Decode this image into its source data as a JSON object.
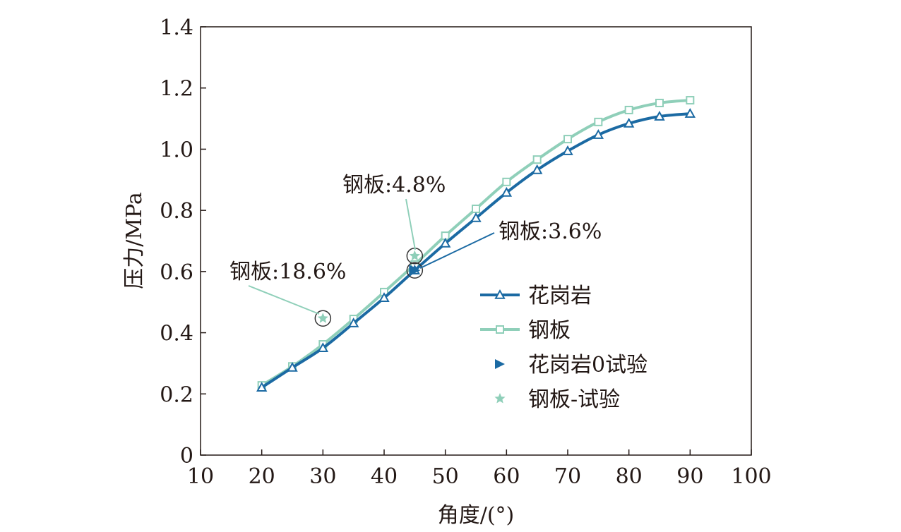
{
  "chart_data": {
    "type": "line",
    "title": "",
    "xlabel": "角度/(°)",
    "ylabel": "压力/MPa",
    "xlim": [
      10,
      100
    ],
    "ylim": [
      0,
      1.4
    ],
    "xticks": [
      "10",
      "20",
      "30",
      "40",
      "50",
      "60",
      "70",
      "80",
      "90",
      "100"
    ],
    "yticks": [
      "0",
      "0.2",
      "0.4",
      "0.6",
      "0.8",
      "1.0",
      "1.2",
      "1.4"
    ],
    "grid": false,
    "legend_position": "center-right",
    "x": [
      20,
      25,
      30,
      35,
      40,
      45,
      50,
      55,
      60,
      65,
      70,
      75,
      80,
      85,
      90
    ],
    "series": [
      {
        "name": "花岗岩",
        "color": "#1b6aa3",
        "marker": "triangle",
        "values": [
          0.221,
          0.286,
          0.35,
          0.431,
          0.514,
          0.604,
          0.692,
          0.775,
          0.858,
          0.932,
          0.994,
          1.047,
          1.084,
          1.107,
          1.116
        ]
      },
      {
        "name": "钢板",
        "color": "#8fcfb9",
        "marker": "square",
        "values": [
          0.228,
          0.29,
          0.362,
          0.445,
          0.533,
          0.623,
          0.717,
          0.805,
          0.893,
          0.966,
          1.033,
          1.089,
          1.128,
          1.151,
          1.16
        ]
      }
    ],
    "test_series": [
      {
        "name": "花岗岩0试验",
        "color": "#1b6aa3",
        "marker": "triangle-right",
        "points": [
          [
            45,
            0.604
          ]
        ]
      },
      {
        "name": "钢板-试验",
        "color": "#8fcfb9",
        "marker": "star",
        "points": [
          [
            30,
            0.447
          ],
          [
            45,
            0.651
          ]
        ]
      }
    ],
    "annotations": [
      {
        "text": "钢板:18.6%",
        "x": 30,
        "y": 0.447
      },
      {
        "text": "钢板:4.8%",
        "x": 45,
        "y": 0.651
      },
      {
        "text": "钢板:3.6%",
        "x": 45,
        "y": 0.604
      }
    ]
  }
}
